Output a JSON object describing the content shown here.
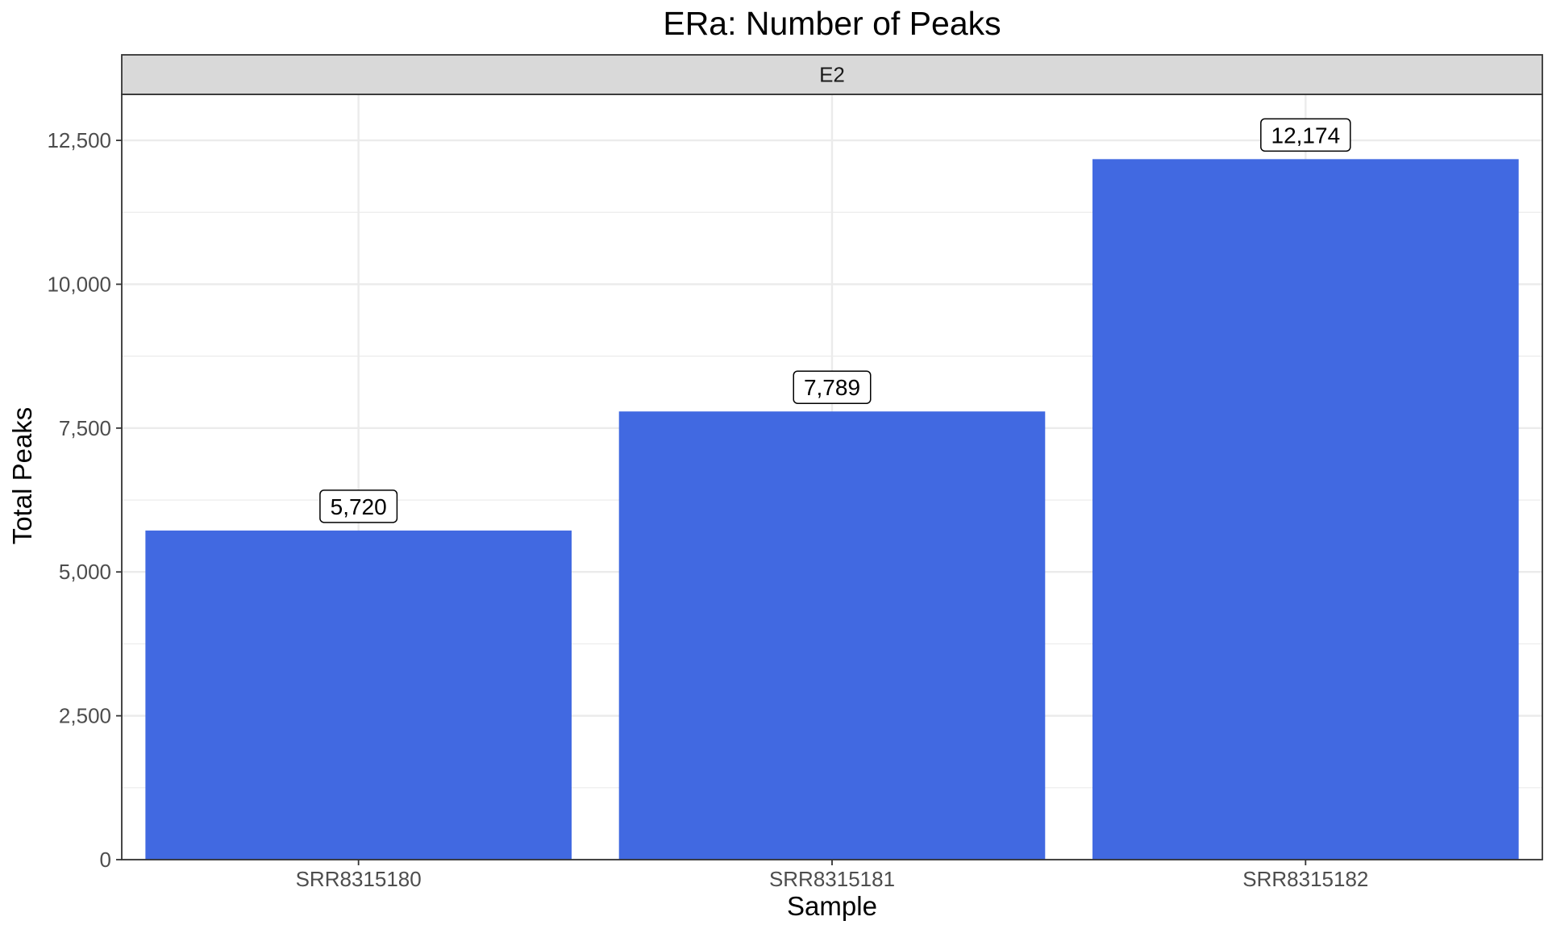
{
  "chart_data": {
    "type": "bar",
    "title": "ERa: Number of Peaks",
    "facet_label": "E2",
    "xlabel": "Sample",
    "ylabel": "Total Peaks",
    "categories": [
      "SRR8315180",
      "SRR8315181",
      "SRR8315182"
    ],
    "values": [
      5720,
      7789,
      12174
    ],
    "data_labels": [
      "5,720",
      "7,789",
      "12,174"
    ],
    "ylim": [
      0,
      13300
    ],
    "y_ticks": [
      0,
      2500,
      5000,
      7500,
      10000,
      12500
    ],
    "y_tick_labels": [
      "0",
      "2,500",
      "5,000",
      "7,500",
      "10,000",
      "12,500"
    ],
    "grid": true,
    "legend": "none",
    "colors": {
      "bar": "#4169E1",
      "panel_border": "#333333",
      "strip_fill": "#d9d9d9",
      "grid": "#ebebeb",
      "label_border": "#000000"
    }
  }
}
